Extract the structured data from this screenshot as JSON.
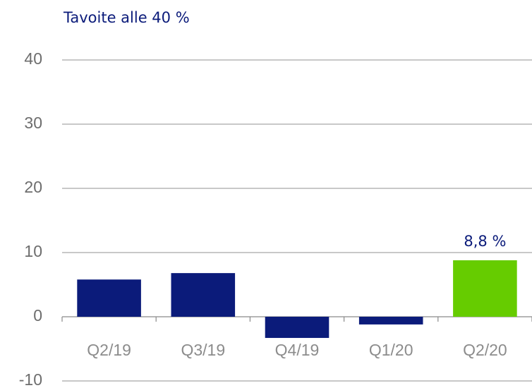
{
  "chart_data": {
    "type": "bar",
    "title": "Tavoite alle 40 %",
    "categories": [
      "Q2/19",
      "Q3/19",
      "Q4/19",
      "Q1/20",
      "Q2/20"
    ],
    "values": [
      5.8,
      6.8,
      -3.3,
      -1.2,
      8.8
    ],
    "value_labels": [
      null,
      null,
      null,
      null,
      "8,8 %"
    ],
    "colors": [
      "#0b1b7a",
      "#0b1b7a",
      "#0b1b7a",
      "#0b1b7a",
      "#66cc00"
    ],
    "ylim": [
      -10,
      40
    ],
    "yticks": [
      -10,
      0,
      10,
      20,
      30,
      40
    ],
    "grid": true
  }
}
